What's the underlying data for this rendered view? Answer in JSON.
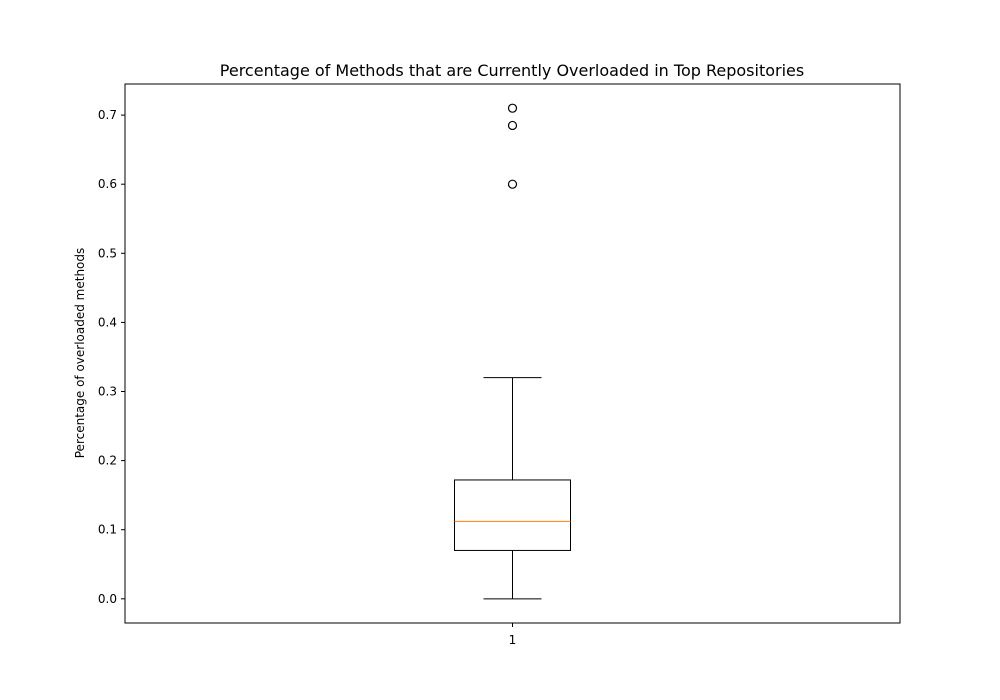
{
  "chart_data": {
    "type": "box",
    "title": "Percentage of Methods that are Currently Overloaded in Top Repositories",
    "xlabel": "",
    "ylabel": "Percentage of overloaded methods",
    "x_tick_labels": [
      "1"
    ],
    "y_ticks": [
      0.0,
      0.1,
      0.2,
      0.3,
      0.4,
      0.5,
      0.6,
      0.7
    ],
    "y_tick_labels": [
      "0.0",
      "0.1",
      "0.2",
      "0.3",
      "0.4",
      "0.5",
      "0.6",
      "0.7"
    ],
    "ylim": [
      -0.035,
      0.745
    ],
    "grid": false,
    "boxes": [
      {
        "position": "1",
        "whisker_low": 0.0,
        "q1": 0.07,
        "median": 0.112,
        "q3": 0.172,
        "whisker_high": 0.32,
        "outliers": [
          0.6,
          0.685,
          0.71
        ]
      }
    ],
    "colors": {
      "box": "#000000",
      "median": "#ff7f0e",
      "outlier_edge": "#000000"
    }
  }
}
